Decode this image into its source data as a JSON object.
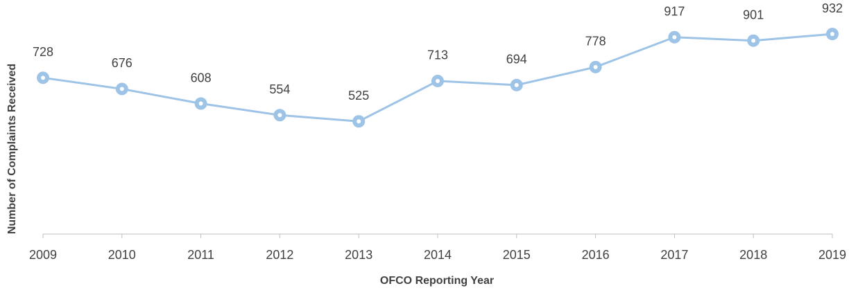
{
  "chart_data": {
    "type": "line",
    "x_label": "OFCO Reporting Year",
    "y_label": "Number of Complaints Received",
    "categories": [
      "2009",
      "2010",
      "2011",
      "2012",
      "2013",
      "2014",
      "2015",
      "2016",
      "2017",
      "2018",
      "2019"
    ],
    "series": [
      {
        "color": "#9dc3e6",
        "values": [
          728,
          676,
          608,
          554,
          525,
          713,
          694,
          778,
          917,
          901,
          932
        ]
      }
    ],
    "ylim": [
      0,
      1000
    ]
  }
}
